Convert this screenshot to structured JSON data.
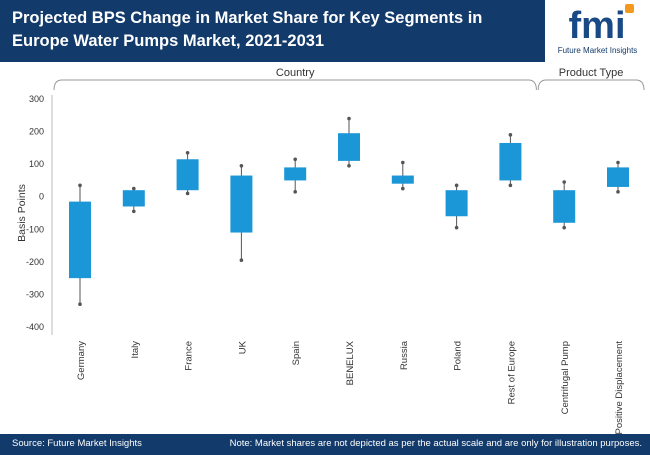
{
  "header": {
    "title": "Projected BPS Change in Market Share for Key Segments in Europe Water Pumps Market, 2021-2031",
    "logo_letters": "fmi",
    "logo_text": "Future Market Insights"
  },
  "footer": {
    "source": "Source: Future Market Insights",
    "note": "Note: Market shares are not depicted as per the actual scale and are only for illustration purposes."
  },
  "colors": {
    "header_bg": "#123a6b",
    "box": "#1b96d6",
    "logo_blue": "#1a4a86",
    "logo_orange": "#f39a1e"
  },
  "chart_data": {
    "type": "box",
    "ylabel": "Basis Points",
    "ylim": [
      -400,
      300
    ],
    "yticks": [
      300,
      200,
      100,
      0,
      -100,
      -200,
      -300,
      -400
    ],
    "groups": [
      {
        "label": "Country",
        "span": [
          0,
          8
        ]
      },
      {
        "label": "Product Type",
        "span": [
          9,
          10
        ]
      }
    ],
    "categories": [
      "Germany",
      "Italy",
      "France",
      "UK",
      "Spain",
      "BENELUX",
      "Russia",
      "Poland",
      "Rest of Europe",
      "Centrifugal Pump",
      "Positive Displacement"
    ],
    "boxes": [
      {
        "low": -330,
        "q1": -250,
        "q3": -15,
        "high": 35
      },
      {
        "low": -45,
        "q1": -30,
        "q3": 20,
        "high": 25
      },
      {
        "low": 10,
        "q1": 20,
        "q3": 115,
        "high": 135
      },
      {
        "low": -195,
        "q1": -110,
        "q3": 65,
        "high": 95
      },
      {
        "low": 15,
        "q1": 50,
        "q3": 90,
        "high": 115
      },
      {
        "low": 95,
        "q1": 110,
        "q3": 195,
        "high": 240
      },
      {
        "low": 25,
        "q1": 40,
        "q3": 65,
        "high": 105
      },
      {
        "low": -95,
        "q1": -60,
        "q3": 20,
        "high": 35
      },
      {
        "low": 35,
        "q1": 50,
        "q3": 165,
        "high": 190
      },
      {
        "low": -95,
        "q1": -80,
        "q3": 20,
        "high": 45
      },
      {
        "low": 15,
        "q1": 30,
        "q3": 90,
        "high": 105
      }
    ]
  }
}
